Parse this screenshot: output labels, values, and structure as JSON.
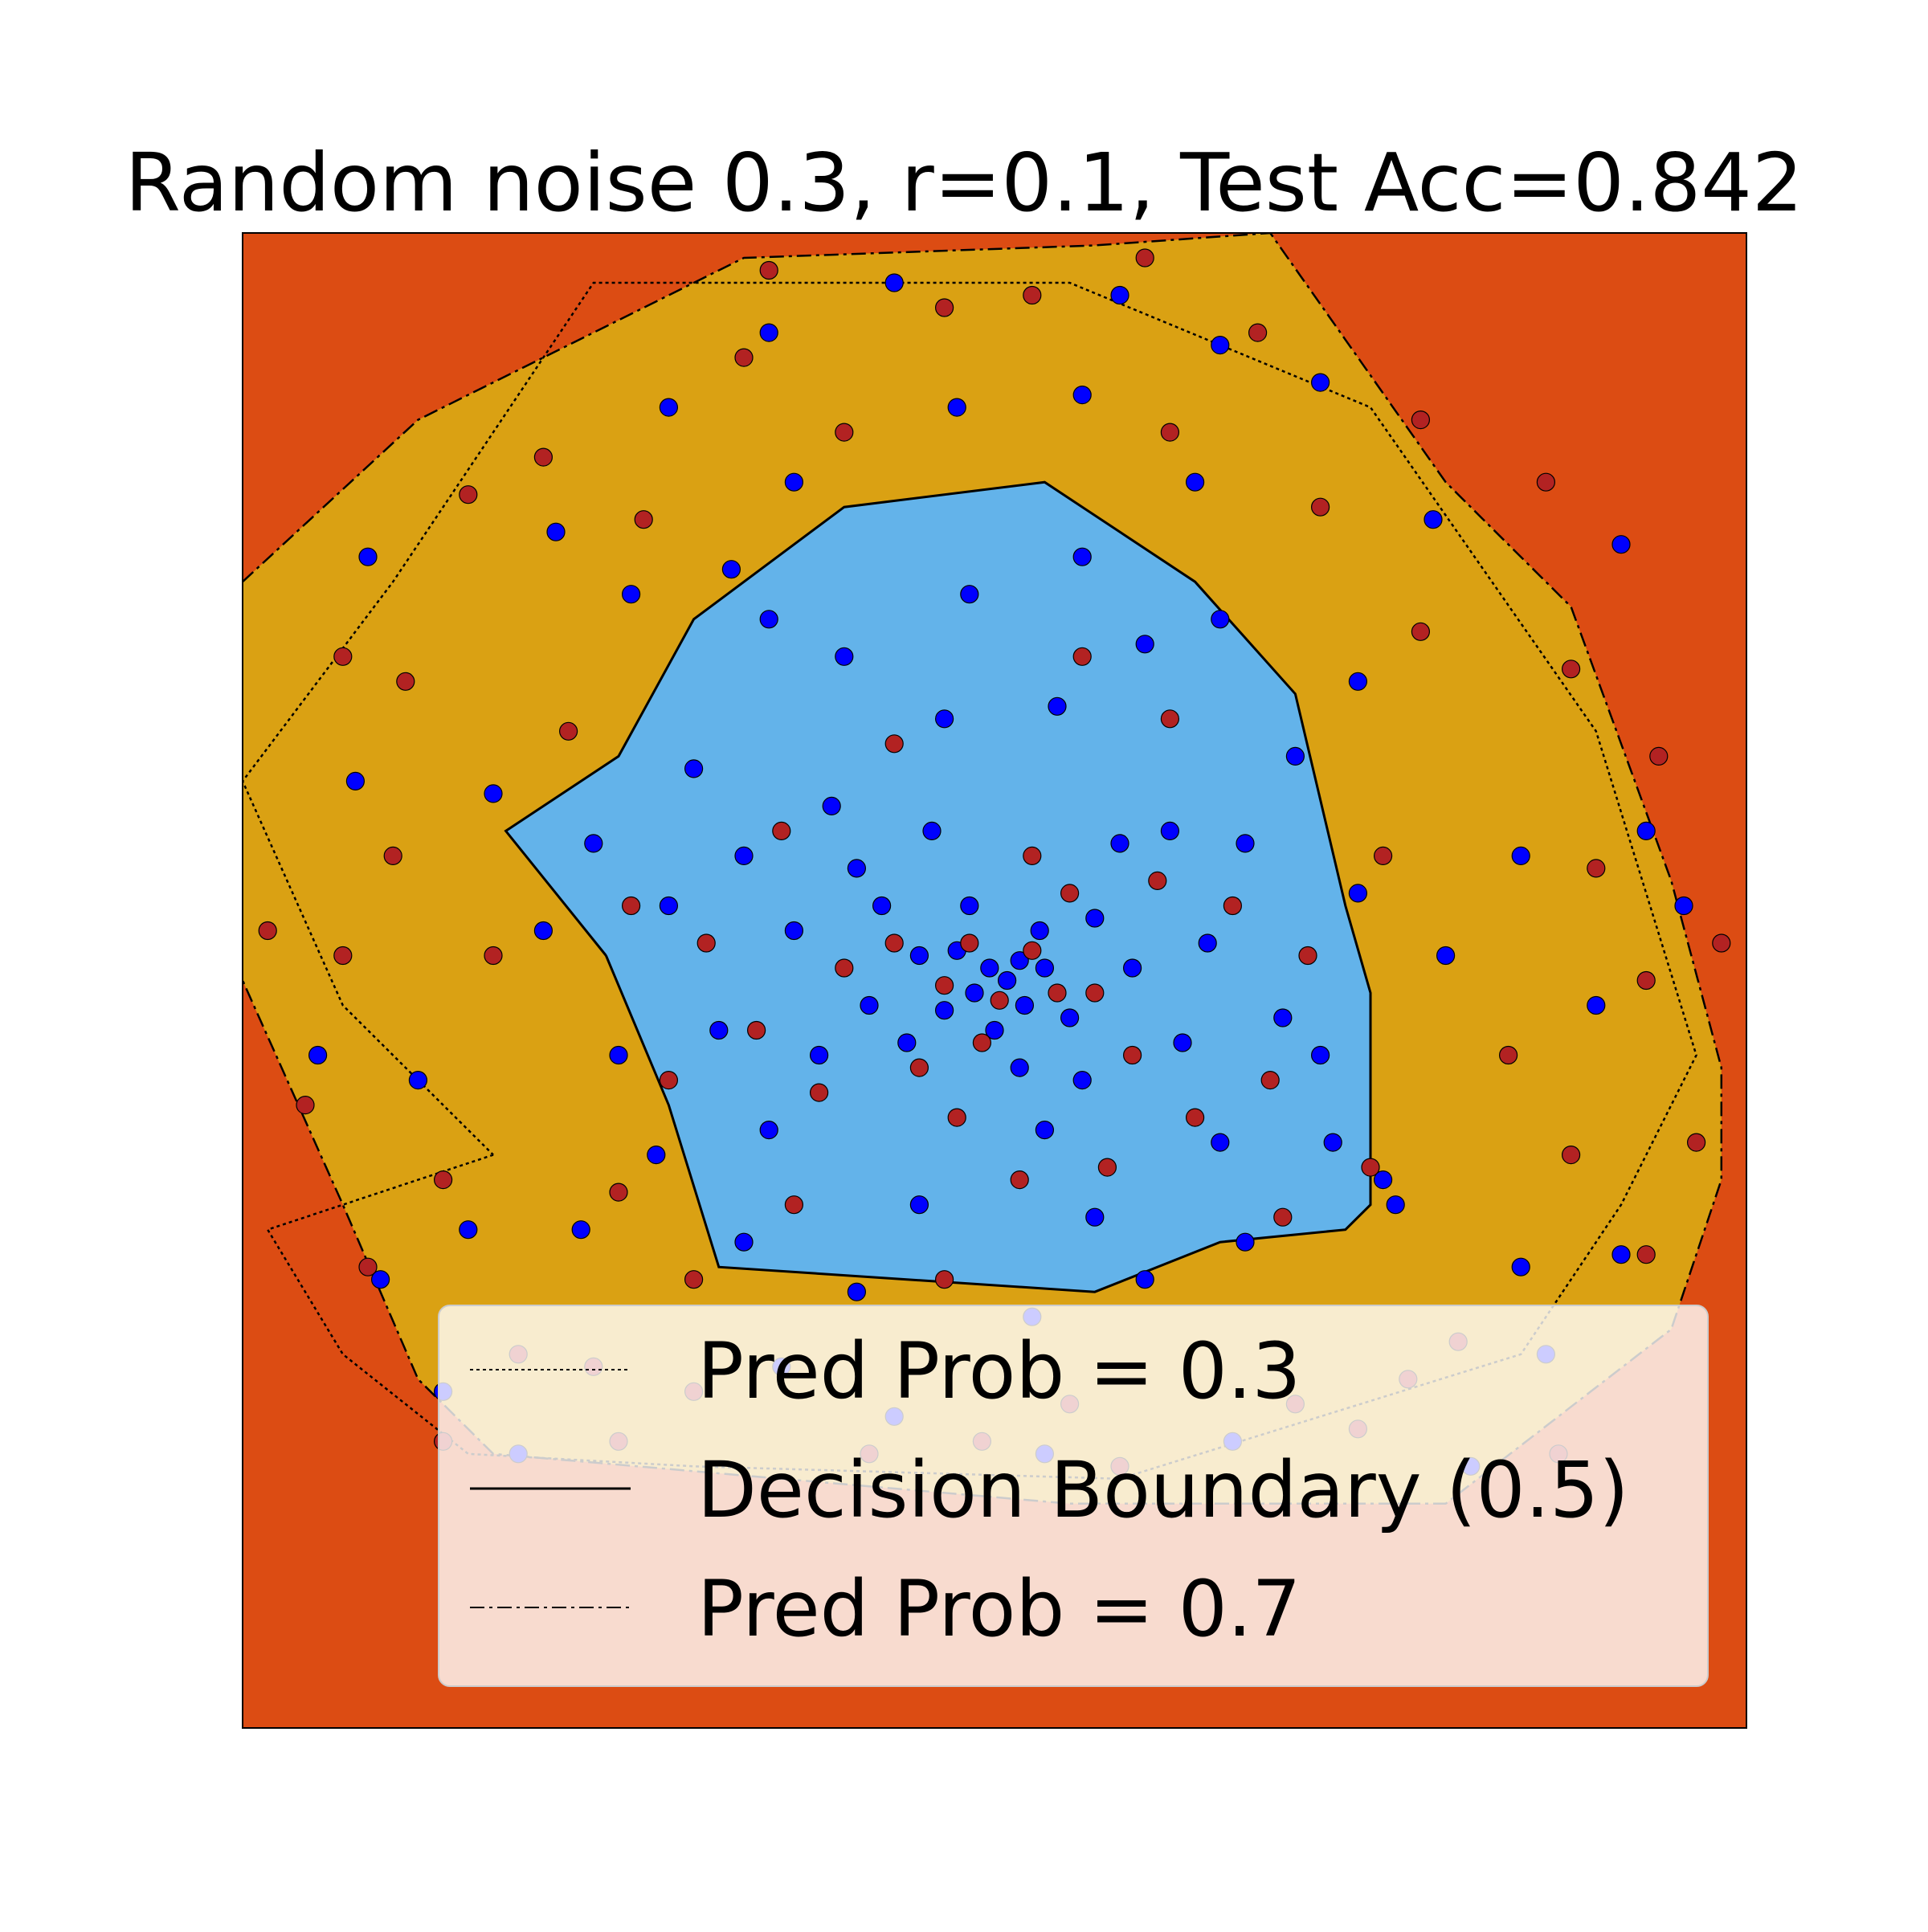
{
  "chart_data": {
    "type": "scatter",
    "title": "Random noise 0.3, r=0.1, Test Acc=0.842",
    "xlabel": "",
    "ylabel": "",
    "xlim": [
      -3,
      3
    ],
    "ylim": [
      -3,
      3
    ],
    "axis_ticks": "hidden",
    "grid": false,
    "legend_placement": "lower-right",
    "regions": [
      {
        "name": "prob below 0.3",
        "color": "#DC4C13"
      },
      {
        "name": "prob 0.3 to 0.7",
        "color": "#DAA113"
      },
      {
        "name": "prob above 0.7",
        "color": "#63B3EA"
      }
    ],
    "contours": [
      {
        "label": "Pred Prob = 0.3",
        "style": "dotted",
        "color": "#000000",
        "points": [
          [
            -2.0,
            -0.7
          ],
          [
            -2.9,
            -1.0
          ],
          [
            -2.6,
            -1.5
          ],
          [
            -2.1,
            -1.9
          ],
          [
            -1.2,
            -1.95
          ],
          [
            0.5,
            -2.0
          ],
          [
            2.1,
            -1.5
          ],
          [
            2.5,
            -0.9
          ],
          [
            2.8,
            -0.3
          ],
          [
            2.4,
            1.0
          ],
          [
            1.5,
            2.3
          ],
          [
            0.3,
            2.8
          ],
          [
            -1.6,
            2.8
          ],
          [
            -2.4,
            1.6
          ],
          [
            -3.0,
            0.8
          ],
          [
            -2.6,
            -0.1
          ],
          [
            -2.0,
            -0.7
          ]
        ]
      },
      {
        "label": "Decision Boundary (0.5)",
        "style": "solid",
        "color": "#000000",
        "points": [
          [
            -1.55,
            0.1
          ],
          [
            -1.3,
            -0.5
          ],
          [
            -1.1,
            -1.15
          ],
          [
            0.4,
            -1.25
          ],
          [
            0.9,
            -1.05
          ],
          [
            1.4,
            -1.0
          ],
          [
            1.5,
            -0.9
          ],
          [
            1.5,
            -0.05
          ],
          [
            1.4,
            0.3
          ],
          [
            1.2,
            1.15
          ],
          [
            0.8,
            1.6
          ],
          [
            0.2,
            2.0
          ],
          [
            -0.6,
            1.9
          ],
          [
            -1.2,
            1.45
          ],
          [
            -1.5,
            0.9
          ],
          [
            -1.95,
            0.6
          ],
          [
            -1.55,
            0.1
          ]
        ]
      },
      {
        "label": "Pred Prob = 0.7",
        "style": "dashdot",
        "color": "#000000",
        "points": [
          [
            -3.0,
            1.6
          ],
          [
            -2.3,
            2.25
          ],
          [
            -1.0,
            2.9
          ],
          [
            0.4,
            2.95
          ],
          [
            1.1,
            3.0
          ],
          [
            1.8,
            2.0
          ],
          [
            2.3,
            1.5
          ],
          [
            2.7,
            0.4
          ],
          [
            2.9,
            -0.35
          ],
          [
            2.9,
            -0.8
          ],
          [
            2.7,
            -1.4
          ],
          [
            1.8,
            -2.1
          ],
          [
            0.3,
            -2.1
          ],
          [
            -2.0,
            -1.9
          ],
          [
            -2.3,
            -1.6
          ],
          [
            -2.6,
            -0.9
          ],
          [
            -3.0,
            0.0
          ]
        ]
      }
    ],
    "series": [
      {
        "color": "#0000FF",
        "points": [
          [
            -0.02,
            0.05
          ],
          [
            0.05,
            0.0
          ],
          [
            0.1,
            0.08
          ],
          [
            -0.08,
            -0.05
          ],
          [
            0.12,
            -0.1
          ],
          [
            -0.15,
            0.12
          ],
          [
            0.2,
            0.05
          ],
          [
            -0.2,
            -0.12
          ],
          [
            0.0,
            -0.2
          ],
          [
            0.18,
            0.2
          ],
          [
            -0.3,
            0.1
          ],
          [
            0.3,
            -0.15
          ],
          [
            -0.1,
            0.3
          ],
          [
            0.1,
            -0.35
          ],
          [
            -0.35,
            -0.25
          ],
          [
            0.4,
            0.25
          ],
          [
            -0.45,
            0.3
          ],
          [
            0.35,
            -0.4
          ],
          [
            -0.5,
            -0.1
          ],
          [
            0.55,
            0.05
          ],
          [
            -0.55,
            0.45
          ],
          [
            0.5,
            0.55
          ],
          [
            -0.25,
            0.6
          ],
          [
            0.2,
            -0.6
          ],
          [
            -0.7,
            -0.3
          ],
          [
            0.75,
            -0.25
          ],
          [
            -0.65,
            0.7
          ],
          [
            0.7,
            0.6
          ],
          [
            -0.8,
            0.2
          ],
          [
            0.85,
            0.15
          ],
          [
            -0.9,
            -0.6
          ],
          [
            0.9,
            -0.65
          ],
          [
            -1.0,
            0.5
          ],
          [
            1.0,
            0.55
          ],
          [
            -0.3,
            -0.9
          ],
          [
            0.4,
            -0.95
          ],
          [
            -1.1,
            -0.2
          ],
          [
            1.15,
            -0.15
          ],
          [
            -0.2,
            1.05
          ],
          [
            0.25,
            1.1
          ],
          [
            -1.2,
            0.85
          ],
          [
            1.2,
            0.9
          ],
          [
            -1.0,
            -1.05
          ],
          [
            1.0,
            -1.05
          ],
          [
            -1.3,
            0.3
          ],
          [
            1.3,
            -0.3
          ],
          [
            -0.6,
            1.3
          ],
          [
            0.6,
            1.35
          ],
          [
            -1.35,
            -0.7
          ],
          [
            1.35,
            -0.65
          ],
          [
            -1.5,
            -0.3
          ],
          [
            1.45,
            0.35
          ],
          [
            -0.9,
            1.45
          ],
          [
            0.9,
            1.45
          ],
          [
            -0.55,
            -1.25
          ],
          [
            0.6,
            -1.2
          ],
          [
            -1.6,
            0.55
          ],
          [
            1.55,
            -0.8
          ],
          [
            -0.1,
            1.55
          ],
          [
            0.15,
            -1.35
          ],
          [
            -1.05,
            1.65
          ],
          [
            0.35,
            1.7
          ],
          [
            -1.65,
            -1.0
          ],
          [
            1.6,
            -0.9
          ],
          [
            -1.45,
            1.55
          ],
          [
            1.45,
            1.2
          ],
          [
            -1.8,
            0.2
          ],
          [
            1.8,
            0.1
          ],
          [
            -0.8,
            2.0
          ],
          [
            0.8,
            2.0
          ],
          [
            -2.1,
            -1.0
          ],
          [
            2.1,
            -1.15
          ],
          [
            -2.0,
            0.75
          ],
          [
            2.1,
            0.5
          ],
          [
            -1.75,
            1.8
          ],
          [
            1.75,
            1.85
          ],
          [
            -0.15,
            2.3
          ],
          [
            0.35,
            2.35
          ],
          [
            -2.3,
            -0.4
          ],
          [
            2.4,
            -0.1
          ],
          [
            -1.3,
            2.3
          ],
          [
            1.3,
            2.4
          ],
          [
            -2.55,
            0.8
          ],
          [
            2.6,
            0.6
          ],
          [
            -2.45,
            -1.2
          ],
          [
            2.5,
            -1.1
          ],
          [
            -0.9,
            2.6
          ],
          [
            0.9,
            2.55
          ],
          [
            -2.2,
            -1.65
          ],
          [
            2.2,
            -1.5
          ],
          [
            -0.4,
            2.8
          ],
          [
            0.5,
            2.75
          ],
          [
            -2.7,
            -0.3
          ],
          [
            2.75,
            0.3
          ],
          [
            -1.9,
            -1.9
          ],
          [
            1.9,
            -1.95
          ],
          [
            -2.5,
            1.7
          ],
          [
            2.5,
            1.75
          ],
          [
            0.2,
            -1.9
          ],
          [
            -0.4,
            -1.75
          ],
          [
            -0.85,
            -1.55
          ],
          [
            0.95,
            -1.85
          ]
        ]
      },
      {
        "color": "#B22222",
        "points": [
          [
            0.02,
            -0.08
          ],
          [
            -0.1,
            0.15
          ],
          [
            0.15,
            0.12
          ],
          [
            -0.2,
            -0.02
          ],
          [
            0.25,
            -0.05
          ],
          [
            -0.05,
            -0.25
          ],
          [
            0.4,
            -0.05
          ],
          [
            -0.4,
            0.15
          ],
          [
            0.3,
            0.35
          ],
          [
            -0.3,
            -0.35
          ],
          [
            0.55,
            -0.3
          ],
          [
            -0.6,
            0.05
          ],
          [
            0.15,
            0.5
          ],
          [
            -0.15,
            -0.55
          ],
          [
            0.65,
            0.4
          ],
          [
            -0.7,
            -0.45
          ],
          [
            -0.85,
            0.6
          ],
          [
            0.8,
            -0.55
          ],
          [
            0.1,
            -0.8
          ],
          [
            -0.95,
            -0.2
          ],
          [
            0.95,
            0.3
          ],
          [
            -0.4,
            0.95
          ],
          [
            0.45,
            -0.75
          ],
          [
            -1.15,
            0.15
          ],
          [
            1.1,
            -0.4
          ],
          [
            -0.8,
            -0.9
          ],
          [
            0.7,
            1.05
          ],
          [
            -1.3,
            -0.4
          ],
          [
            1.25,
            0.1
          ],
          [
            -0.2,
            -1.2
          ],
          [
            0.35,
            1.3
          ],
          [
            -1.45,
            0.3
          ],
          [
            1.55,
            0.5
          ],
          [
            -1.2,
            -1.2
          ],
          [
            1.15,
            -0.95
          ],
          [
            -1.5,
            -0.85
          ],
          [
            1.5,
            -0.75
          ],
          [
            -1.7,
            1.0
          ],
          [
            1.7,
            1.4
          ],
          [
            -2.0,
            0.1
          ],
          [
            2.05,
            -0.3
          ],
          [
            -1.4,
            1.85
          ],
          [
            1.3,
            1.9
          ],
          [
            -2.2,
            -0.8
          ],
          [
            2.3,
            -0.7
          ],
          [
            -0.6,
            2.2
          ],
          [
            0.7,
            2.2
          ],
          [
            -2.35,
            1.2
          ],
          [
            2.3,
            1.25
          ],
          [
            -1.9,
            -1.5
          ],
          [
            1.85,
            -1.45
          ],
          [
            -2.6,
            0.1
          ],
          [
            2.6,
            0.0
          ],
          [
            -1.0,
            2.5
          ],
          [
            1.05,
            2.6
          ],
          [
            -2.5,
            -1.15
          ],
          [
            2.6,
            -1.1
          ],
          [
            -0.2,
            2.7
          ],
          [
            0.15,
            2.75
          ],
          [
            -2.6,
            1.3
          ],
          [
            2.65,
            0.9
          ],
          [
            -1.8,
            2.1
          ],
          [
            1.7,
            2.25
          ],
          [
            -2.75,
            -0.5
          ],
          [
            2.8,
            -0.65
          ],
          [
            -1.5,
            -1.85
          ],
          [
            1.45,
            -1.8
          ],
          [
            -0.5,
            -1.9
          ],
          [
            0.5,
            -1.95
          ],
          [
            -2.2,
            -1.85
          ],
          [
            2.25,
            -1.9
          ],
          [
            -2.1,
            1.95
          ],
          [
            2.2,
            2.0
          ],
          [
            -0.9,
            2.85
          ],
          [
            0.6,
            2.9
          ],
          [
            -1.6,
            -1.55
          ],
          [
            1.65,
            -1.6
          ],
          [
            -2.9,
            0.2
          ],
          [
            2.9,
            0.15
          ],
          [
            -2.4,
            0.5
          ],
          [
            2.4,
            0.45
          ],
          [
            -1.2,
            -1.65
          ],
          [
            1.2,
            -1.7
          ],
          [
            -0.05,
            -1.85
          ],
          [
            0.3,
            -1.7
          ]
        ]
      }
    ],
    "legend": [
      {
        "label": "Pred Prob = 0.3",
        "style": "dotted"
      },
      {
        "label": "Decision Boundary (0.5)",
        "style": "solid"
      },
      {
        "label": "Pred Prob = 0.7",
        "style": "dashdot"
      }
    ]
  }
}
